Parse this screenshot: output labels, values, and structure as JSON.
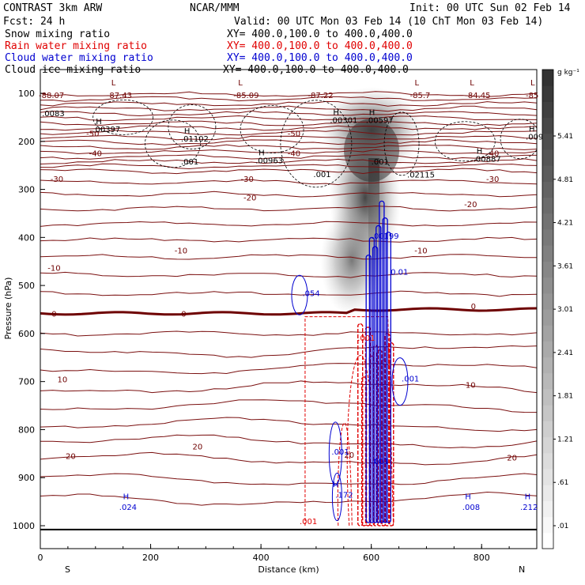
{
  "header": {
    "left_line1": "CONTRAST  3km ARW",
    "left_line2": "Fcst:    24 h",
    "center_line1": "NCAR/MMM",
    "init": "Init: 00 UTC Sun 02 Feb 14",
    "valid": "Valid: 00 UTC Mon 03 Feb 14 (10 ChT Mon 03 Feb 14)"
  },
  "fields": [
    {
      "label": "Snow mixing ratio",
      "xy": "XY= 400.0,100.0 to 400.0,400.0",
      "color": "#000000"
    },
    {
      "label": "Rain water mixing ratio",
      "xy": "XY= 400.0,100.0 to 400.0,400.0",
      "color": "#e00000"
    },
    {
      "label": "Cloud water mixing ratio",
      "xy": "XY= 400.0,100.0 to 400.0,400.0",
      "color": "#0000d0"
    },
    {
      "label": "Cloud ice mixing ratio",
      "xy": "XY= 400.0,100.0 to 400.0,400.0",
      "color": "#000000"
    }
  ],
  "chart_data": {
    "type": "cross-section contour",
    "xlabel": "Distance (km)",
    "ylabel": "Pressure (hPa)",
    "xlim": [
      0,
      900
    ],
    "ylim": [
      1000,
      100
    ],
    "x_ticks": [
      0,
      200,
      400,
      600,
      800
    ],
    "y_ticks": [
      100,
      200,
      300,
      400,
      500,
      600,
      700,
      800,
      900,
      1000
    ],
    "left_end_label": "S",
    "right_end_label": "N",
    "colorbar_unit": "g kg⁻¹",
    "colorbar_ticks": [
      ".01",
      ".61",
      "1.21",
      "1.81",
      "2.41",
      "3.01",
      "3.61",
      "4.21",
      "4.81",
      "5.41"
    ],
    "temperature_contour_labels": [
      {
        "text": "-50",
        "x": 95,
        "p": 183
      },
      {
        "text": "-50",
        "x": 460,
        "p": 183
      },
      {
        "text": "-40",
        "x": 100,
        "p": 224
      },
      {
        "text": "-40",
        "x": 460,
        "p": 224
      },
      {
        "text": "-40",
        "x": 820,
        "p": 224
      },
      {
        "text": "-30",
        "x": 30,
        "p": 278
      },
      {
        "text": "-30",
        "x": 375,
        "p": 278
      },
      {
        "text": "-30",
        "x": 820,
        "p": 278
      },
      {
        "text": "-20",
        "x": 380,
        "p": 316
      },
      {
        "text": "-20",
        "x": 780,
        "p": 330
      },
      {
        "text": "-10",
        "x": 255,
        "p": 427
      },
      {
        "text": "-10",
        "x": 690,
        "p": 427
      },
      {
        "text": "-10",
        "x": 25,
        "p": 463
      },
      {
        "text": "0",
        "x": 25,
        "p": 558
      },
      {
        "text": "0",
        "x": 260,
        "p": 558
      },
      {
        "text": "0",
        "x": 785,
        "p": 543
      },
      {
        "text": "10",
        "x": 40,
        "p": 695
      },
      {
        "text": "10",
        "x": 780,
        "p": 706
      },
      {
        "text": "20",
        "x": 55,
        "p": 854
      },
      {
        "text": "20",
        "x": 285,
        "p": 835
      },
      {
        "text": "20",
        "x": 560,
        "p": 852
      },
      {
        "text": "20",
        "x": 855,
        "p": 858
      }
    ],
    "top_extrema": [
      {
        "mark": "L",
        "value": "-87.43",
        "x": 120
      },
      {
        "mark": "L",
        "value": "-85.09",
        "x": 350
      },
      {
        "mark": "",
        "value": "-87.22",
        "x": 485
      },
      {
        "mark": "L",
        "value": "-85.7",
        "x": 670
      },
      {
        "mark": "L",
        "value": "-84.45",
        "x": 770
      },
      {
        "mark": "L",
        "value": "-85",
        "x": 880
      },
      {
        "mark": "",
        "value": "-88.07",
        "x": 0
      }
    ],
    "ice_maxima": [
      {
        "text": ".0083",
        "x": 3,
        "p": 148,
        "mark": ""
      },
      {
        "text": ".00397",
        "x": 95,
        "p": 181,
        "mark": "H"
      },
      {
        "text": ".01102",
        "x": 255,
        "p": 200,
        "mark": "H"
      },
      {
        "text": ".001",
        "x": 255,
        "p": 248,
        "mark": ""
      },
      {
        "text": ".00963",
        "x": 390,
        "p": 246,
        "mark": "H"
      },
      {
        "text": ".001",
        "x": 495,
        "p": 274,
        "mark": ""
      },
      {
        "text": ".00301",
        "x": 525,
        "p": 162,
        "mark": "H"
      },
      {
        "text": ".00597",
        "x": 590,
        "p": 162,
        "mark": "H"
      },
      {
        "text": ".001",
        "x": 600,
        "p": 248,
        "mark": ""
      },
      {
        "text": ".02115",
        "x": 665,
        "p": 275,
        "mark": ""
      },
      {
        "text": ".00887",
        "x": 785,
        "p": 242,
        "mark": "H"
      },
      {
        "text": ".009",
        "x": 880,
        "p": 196,
        "mark": "H"
      }
    ],
    "cloud_water_labels": [
      {
        "text": ".054",
        "x": 475,
        "p": 522
      },
      {
        "text": ".00199",
        "x": 600,
        "p": 403
      },
      {
        "text": "0.01",
        "x": 635,
        "p": 478
      },
      {
        "text": ".001",
        "x": 655,
        "p": 700
      },
      {
        "text": ".001",
        "x": 528,
        "p": 852
      },
      {
        "text": ".001",
        "x": 600,
        "p": 872
      },
      {
        "text": ".172",
        "x": 535,
        "p": 942
      },
      {
        "text": "H",
        "x": 530,
        "p": 919
      },
      {
        "text": ".024",
        "x": 143,
        "p": 967
      },
      {
        "text": "H",
        "x": 150,
        "p": 945
      },
      {
        "text": ".008",
        "x": 765,
        "p": 967
      },
      {
        "text": "H",
        "x": 770,
        "p": 945
      },
      {
        "text": ".212",
        "x": 870,
        "p": 967
      },
      {
        "text": "H",
        "x": 878,
        "p": 945
      }
    ],
    "rain_labels": [
      {
        "text": ".001",
        "x": 470,
        "p": 997
      },
      {
        "text": ".001",
        "x": 575,
        "p": 615
      }
    ],
    "freezing_level_hPa": 558,
    "surface_hPa": 1008
  }
}
